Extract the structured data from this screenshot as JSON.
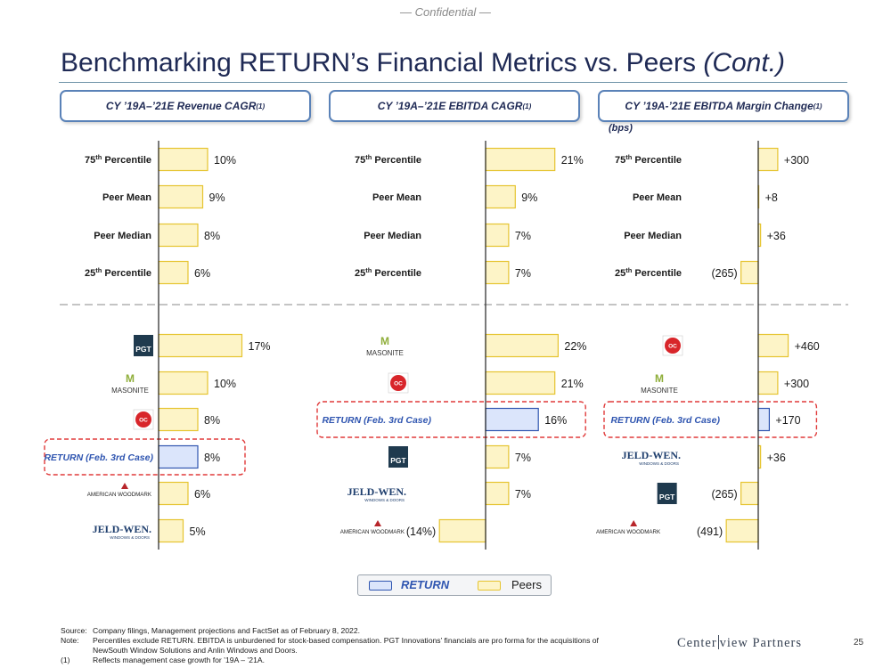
{
  "header": {
    "confidential": "— Confidential —"
  },
  "title": {
    "main": "Benchmarking RETURN’s Financial Metrics vs. Peers",
    "suffix": "(Cont.)"
  },
  "panels": [
    {
      "title": "CY ’19A–’21E Revenue CAGR",
      "note": "(1)"
    },
    {
      "title": "CY ’19A–’21E EBITDA CAGR",
      "note": "(1)"
    },
    {
      "title": "CY ’19A-’21E EBITDA Margin Change",
      "note": "(1)",
      "unit": "(bps)"
    }
  ],
  "colors": {
    "return_fill": "#dbe5fb",
    "return_stroke": "#2f55b0",
    "peer_fill": "#fdf4c7",
    "peer_stroke": "#e6c430",
    "callout": "#e03a3a",
    "axis": "#222222"
  },
  "chart_data": [
    {
      "type": "bar",
      "orientation": "horizontal",
      "title": "CY ’19A–’21E Revenue CAGR (%)",
      "stats": [
        {
          "label": "75th Percentile",
          "ord": "75",
          "suf": "th",
          "rest": " Percentile",
          "value": 10,
          "text": "10%"
        },
        {
          "label": "Peer Mean",
          "value": 9,
          "text": "9%"
        },
        {
          "label": "Peer Median",
          "value": 8,
          "text": "8%"
        },
        {
          "label": "25th Percentile",
          "ord": "25",
          "suf": "th",
          "rest": " Percentile",
          "value": 6,
          "text": "6%"
        }
      ],
      "companies": [
        {
          "name": "PGT",
          "logo": "pgt",
          "value": 17,
          "text": "17%",
          "is_return": false
        },
        {
          "name": "MASONITE",
          "logo": "masonite",
          "value": 10,
          "text": "10%",
          "is_return": false
        },
        {
          "name": "Owens Corning",
          "logo": "oc",
          "value": 8,
          "text": "8%",
          "is_return": false
        },
        {
          "name": "RETURN (Feb. 3rd Case)",
          "value": 8,
          "text": "8%",
          "is_return": true
        },
        {
          "name": "AMERICAN WOODMARK",
          "logo": "awm",
          "value": 6,
          "text": "6%",
          "is_return": false
        },
        {
          "name": "JELD-WEN",
          "logo": "jeldwen",
          "value": 5,
          "text": "5%",
          "is_return": false
        }
      ]
    },
    {
      "type": "bar",
      "orientation": "horizontal",
      "title": "CY ’19A–’21E EBITDA CAGR (%)",
      "stats": [
        {
          "label": "75th Percentile",
          "ord": "75",
          "suf": "th",
          "rest": " Percentile",
          "value": 21,
          "text": "21%"
        },
        {
          "label": "Peer Mean",
          "value": 9,
          "text": "9%"
        },
        {
          "label": "Peer Median",
          "value": 7,
          "text": "7%"
        },
        {
          "label": "25th Percentile",
          "ord": "25",
          "suf": "th",
          "rest": " Percentile",
          "value": 7,
          "text": "7%"
        }
      ],
      "companies": [
        {
          "name": "MASONITE",
          "logo": "masonite",
          "value": 22,
          "text": "22%",
          "is_return": false
        },
        {
          "name": "Owens Corning",
          "logo": "oc",
          "value": 21,
          "text": "21%",
          "is_return": false
        },
        {
          "name": "RETURN (Feb. 3rd Case)",
          "value": 16,
          "text": "16%",
          "is_return": true
        },
        {
          "name": "PGT",
          "logo": "pgt",
          "value": 7,
          "text": "7%",
          "is_return": false
        },
        {
          "name": "JELD-WEN",
          "logo": "jeldwen",
          "value": 7,
          "text": "7%",
          "is_return": false
        },
        {
          "name": "AMERICAN WOODMARK",
          "logo": "awm",
          "value": -14,
          "text": "(14%)",
          "is_return": false
        }
      ]
    },
    {
      "type": "bar",
      "orientation": "horizontal",
      "title": "CY ’19A-’21E EBITDA Margin Change (bps)",
      "stats": [
        {
          "label": "75th Percentile",
          "ord": "75",
          "suf": "th",
          "rest": " Percentile",
          "value": 300,
          "text": "+300"
        },
        {
          "label": "Peer Mean",
          "value": 8,
          "text": "+8"
        },
        {
          "label": "Peer Median",
          "value": 36,
          "text": "+36"
        },
        {
          "label": "25th Percentile",
          "ord": "25",
          "suf": "th",
          "rest": " Percentile",
          "value": -265,
          "text": "(265)"
        }
      ],
      "companies": [
        {
          "name": "Owens Corning",
          "logo": "oc",
          "value": 460,
          "text": "+460",
          "is_return": false
        },
        {
          "name": "MASONITE",
          "logo": "masonite",
          "value": 300,
          "text": "+300",
          "is_return": false
        },
        {
          "name": "RETURN (Feb. 3rd Case)",
          "value": 170,
          "text": "+170",
          "is_return": true
        },
        {
          "name": "JELD-WEN",
          "logo": "jeldwen",
          "value": 36,
          "text": "+36",
          "is_return": false
        },
        {
          "name": "PGT",
          "logo": "pgt",
          "value": -265,
          "text": "(265)",
          "is_return": false
        },
        {
          "name": "AMERICAN WOODMARK",
          "logo": "awm",
          "value": -491,
          "text": "(491)",
          "is_return": false
        }
      ]
    }
  ],
  "legend": {
    "return_label": "RETURN",
    "peers_label": "Peers"
  },
  "footnotes": {
    "source_key": "Source:",
    "source": "Company filings, Management projections and FactSet as of February 8, 2022.",
    "note_key": "Note:",
    "note_line1": "Percentiles exclude RETURN. EBITDA is unburdened for stock-based compensation. PGT Innovations’ financials are pro forma for the acquisitions of",
    "note_line2": "NewSouth Window Solutions and Anlin Windows and Doors.",
    "fn1_key": "(1)",
    "fn1": "Reflects management case growth for ’19A – ’21A."
  },
  "brand": {
    "left": "Center",
    "right": "view Partners"
  },
  "page_number": "25"
}
